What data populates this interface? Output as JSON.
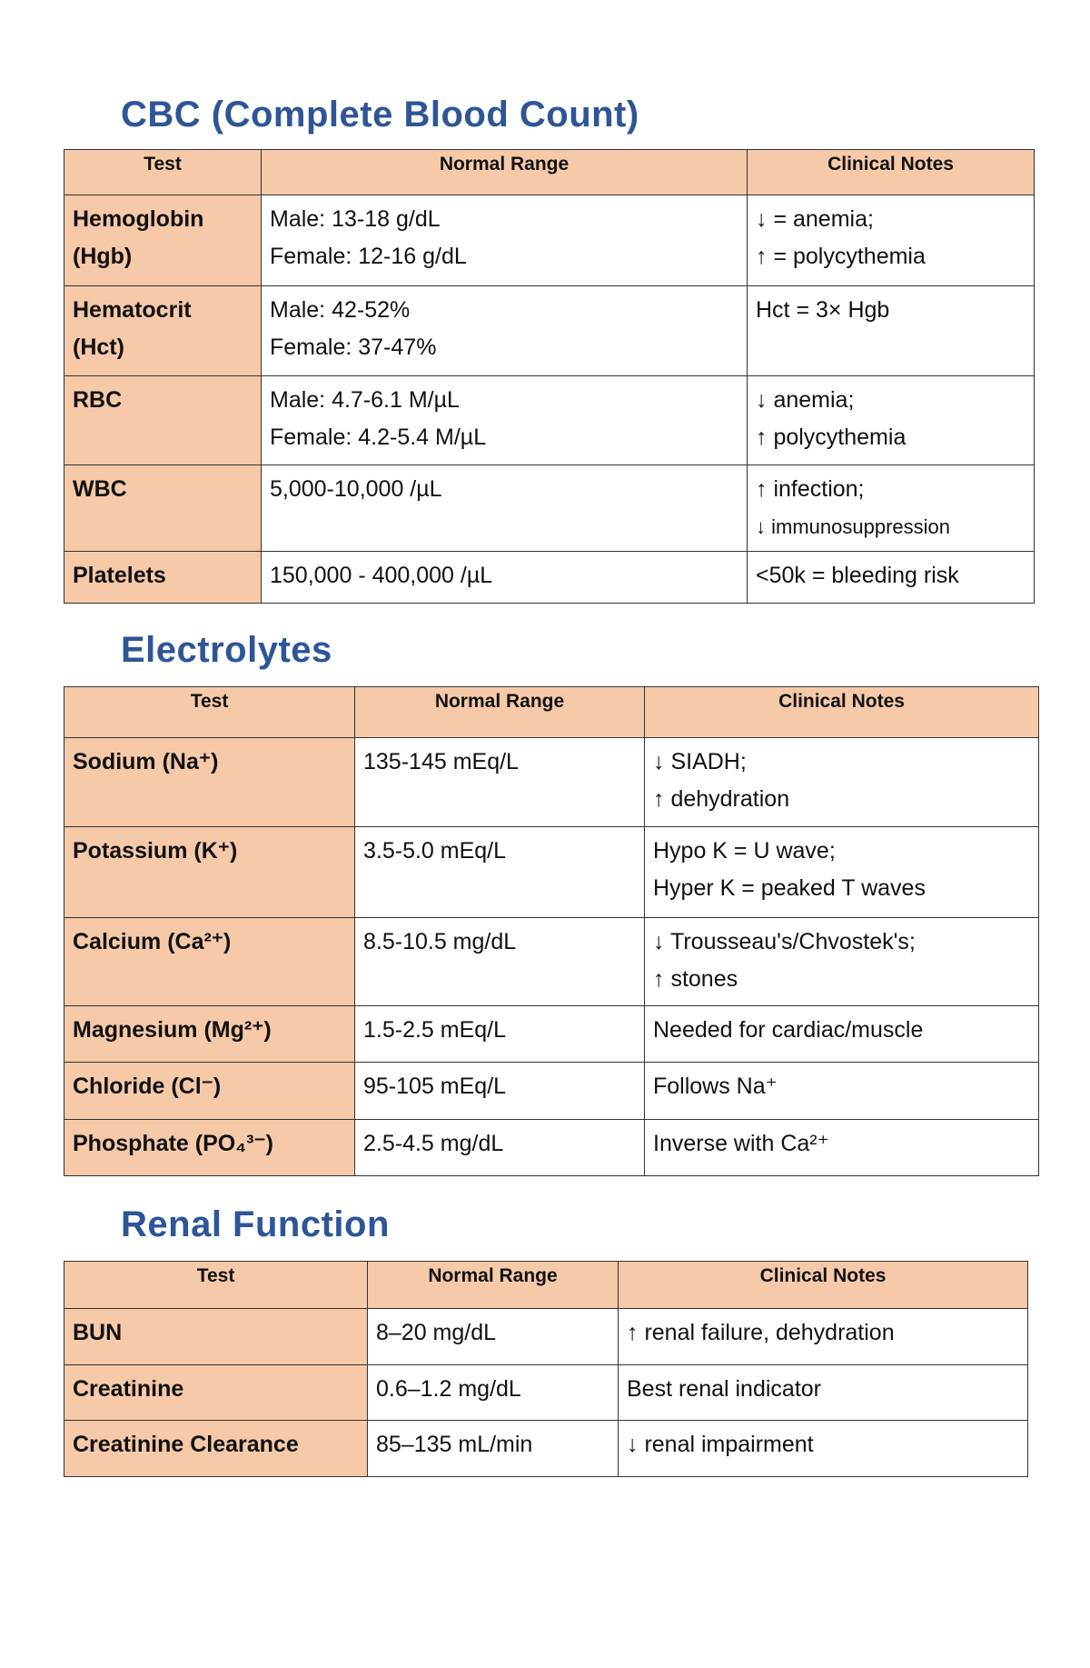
{
  "sections": [
    {
      "title": "CBC (Complete Blood Count)",
      "headers": [
        "Test",
        "Normal Range",
        "Clinical Notes"
      ],
      "rows": [
        {
          "test": [
            "Hemoglobin",
            "(Hgb)"
          ],
          "range": [
            "Male: 13-18 g/dL",
            "Female: 12-16 g/dL"
          ],
          "notes": [
            "↓ = anemia;",
            "↑ = polycythemia"
          ]
        },
        {
          "test": [
            "Hematocrit",
            "(Hct)"
          ],
          "range": [
            "Male: 42-52%",
            "Female: 37-47%"
          ],
          "notes": [
            "Hct = 3× Hgb"
          ]
        },
        {
          "test": [
            "RBC"
          ],
          "range": [
            "Male: 4.7-6.1 M/µL",
            "Female: 4.2-5.4 M/µL"
          ],
          "notes": [
            "↓ anemia;",
            "↑ polycythemia"
          ]
        },
        {
          "test": [
            "WBC"
          ],
          "range": [
            "5,000-10,000 /µL"
          ],
          "notes": [
            "↑ infection;",
            "↓ immunosuppression"
          ]
        },
        {
          "test": [
            "Platelets"
          ],
          "range": [
            "150,000 - 400,000 /µL"
          ],
          "notes": [
            "<50k = bleeding risk"
          ]
        }
      ]
    },
    {
      "title": "Electrolytes",
      "headers": [
        "Test",
        "Normal Range",
        "Clinical Notes"
      ],
      "rows": [
        {
          "test": [
            "Sodium (Na⁺)"
          ],
          "range": [
            "135-145 mEq/L"
          ],
          "notes": [
            "↓ SIADH;",
            "↑ dehydration"
          ]
        },
        {
          "test": [
            "Potassium (K⁺)"
          ],
          "range": [
            "3.5-5.0 mEq/L"
          ],
          "notes": [
            "Hypo K = U wave;",
            "Hyper K = peaked T waves"
          ]
        },
        {
          "test": [
            "Calcium (Ca²⁺)"
          ],
          "range": [
            "8.5-10.5 mg/dL"
          ],
          "notes": [
            "↓ Trousseau's/Chvostek's;",
            "↑ stones"
          ]
        },
        {
          "test": [
            "Magnesium (Mg²⁺)"
          ],
          "range": [
            "1.5-2.5 mEq/L"
          ],
          "notes": [
            "Needed for cardiac/muscle"
          ]
        },
        {
          "test": [
            "Chloride (Cl⁻)"
          ],
          "range": [
            "95-105 mEq/L"
          ],
          "notes": [
            "Follows Na⁺"
          ]
        },
        {
          "test": [
            "Phosphate (PO₄³⁻)"
          ],
          "range": [
            "2.5-4.5 mg/dL"
          ],
          "notes": [
            "Inverse with Ca²⁺"
          ]
        }
      ]
    },
    {
      "title": "Renal Function",
      "headers": [
        "Test",
        "Normal Range",
        "Clinical Notes"
      ],
      "rows": [
        {
          "test": [
            "BUN"
          ],
          "range": [
            "8–20 mg/dL"
          ],
          "notes": [
            "↑ renal failure, dehydration"
          ]
        },
        {
          "test": [
            "Creatinine"
          ],
          "range": [
            "0.6–1.2 mg/dL"
          ],
          "notes": [
            "Best renal indicator"
          ]
        },
        {
          "test": [
            "Creatinine Clearance"
          ],
          "range": [
            "85–135 mL/min"
          ],
          "notes": [
            "↓ renal impairment"
          ]
        }
      ]
    }
  ],
  "colors": {
    "title": "#2e5597",
    "header_fill": "#f6c9a8",
    "border": "#333333"
  }
}
